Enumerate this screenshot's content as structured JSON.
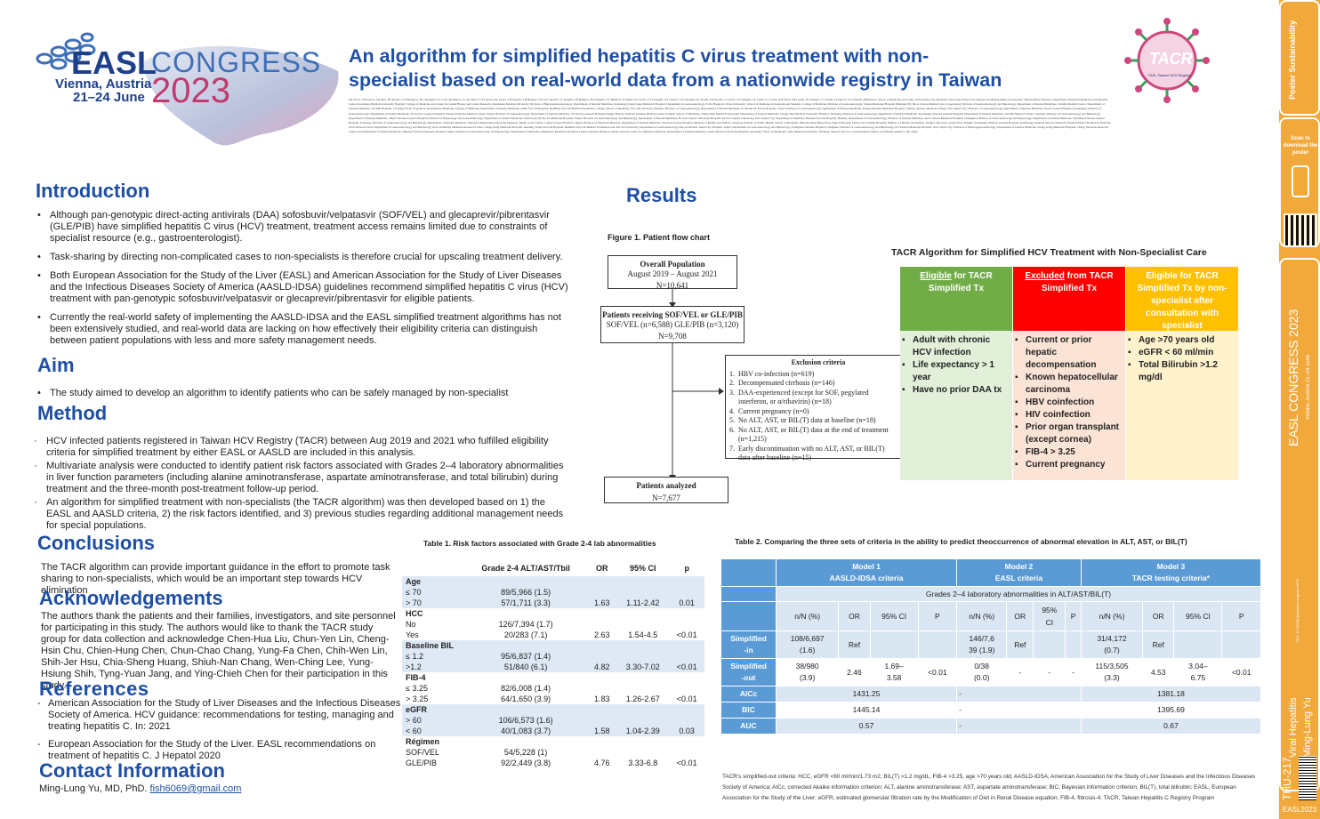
{
  "header": {
    "logo_easl": "EASL",
    "logo_congress": "CONGRESS",
    "logo_place": "Vienna, Austria",
    "logo_dates": "21–24 June",
    "logo_year": "2023",
    "title_line1": "An algorithm for simplified hepatitis C virus treatment with non-",
    "title_line2": "specialist based on real-world data from a nationwide registry in Taiwan",
    "authors_text": "ML Yu1,2, CM Tai3,4, LR Mo5, HT Kuo6,7, CF Huang1,2, KC Tseng8,9, CC Lo10, MJ Bair11,12, SK Yeh13, CY Chen14, PL Lee15, TH Yang16, YH Huang17,18, LW Chen19, CC Yang20, CH Hung21, PN Cheng22, TY Hsieh23, JT Hu24, WC Wu25, CY Cheng26, GY Chen27, GX Zhou28, WL Tsai29, CN Kao30, CL Lin31, CY Wang32, TY Lin33, CL Lin34, WW Su35, TH Lee36, TS Chang37, CJ Liu38, CY Dai1,2, CY Chen39, Affiliations: School of Medicine and Center of Excellence for Metabolic Associated Fatty Liver Disease, Kaohsiung Medical University; Hepatobiliary Division, Department of Internal Medicine and Hepatitis Center, Kaohsiung Medical University Hospital; College of Medicine and Center for Liquid Biopsy and Cohort Research, Kaohsiung Medical University; Division of Hepatogastroenterology, Department of Internal Medicine, Kaohsiung Chang Gung Memorial Hospital; Department of Gastroenterology, E-Da Hospital, I-Shou University; School of Medicine for International Students, College of Medicine; Division of Gastroenterology, Tainan Municipal Hospital (Managed By Show Chwan Medical Care Corporation); Division of Gastroenterology and Hepatology, Department of Internal Medicine, Chi Mei Medical Center; Department of Internal Medicine, Chi Mei Hospital, Liouying; Ph.D. Program in Translational Medicine, College of Medicine; Department of Internal Medicine, Dalin Tzu Chi Hospital, Buddhist Tzu Chi Medical Foundation, Chiayi; School of Medicine, Tzu Chi University, Hualien; Division of Gastroenterology, Department of Internal Medicine, St. Martin De Porres Hospital, Chiayi; Division of Gastroenterology, Department of Internal Medicine, Taitung Mackay Memorial Hospital, Taitung; Mackay Medical College, New Taipei City; Division of Gastroenterology, Department of Internal Medicine, Yuan's General Hospital, Kaohsiung; Division of Gastroenterology, Department of Internal Medicine, Tri-Service General Hospital, National Defense Medical Center, Taipei; Division of Gastroenterology, Department of Internal Medicine, Tri-Service General Hospital Penghu Branch, National Defense Medical Center, Penghu; School of Medicine, Chung Shan Medical University; Department of Internal Medicine, Chung Shan Medical University Hospital, Taichung; Division of Gastroenterology, Department of Internal Medicine, Kaohsiung Veterans General Hospital; Department of Internal Medicine, Chi Mei Medical Center, Liouying; Division of Gastroenterology and Hepatology, Department of Internal Medicine, Taipei Veterans General Hospital; Division of Hepatology and Gastroenterology, Department of Internal Medicine, Shin Kong Wu Ho-Su Memorial Hospital, Taipei; Division of Gastroenterology and Hepatology, Department of Internal Medicine, Fu Jen Catholic University Hospital, Fu Jen Catholic University, New Taipei City; Department of Medicine, Hualien Tzu Chi Hospital, Hualien; Department of Gastroenterology, Division of Internal Medicine, Show Chwan Memorial Hospital, Changhua; Division of Gastroenterology and Hepatology, Department of Internal Medicine, Taichung Veterans General Hospital, Taichung; Division of Gastroenterology and Hepatology, Department of Internal Medicine, National Cheng Kung University Hospital, Tainan; Liver Center, Cathay General Hospital, Taipei; Division of Infectious Diseases, Department of Internal Medicine, Taoyuan General Hospital, Ministry of Health and Welfare, Taoyuan; Institute of Public Health, School of Medicine, National Yang Ming Chiao Tung University, Taipei City; Penghu Hospital, Ministry of Health and Welfare, Penghu; Zhou Guo-zong Clinic, Penghu; Kaohsiung Veterans General Hospital, Kaohsiung; National Taiwan University Hospital Hsin-Chu Branch, Hsinchu; Liver Research Unit, Department of Gastroenterology and Hepatology and Community Medicine Research Center, Chang Gung Memorial Hospital, Keelung; Taipei Tzu Chi Hospital, Buddhist Tzu Chi Medical Foundation and Tzu Chi University; Department of Gastroenterology, Ren-Ai Branch, Taipei City Hospital, Taipei; Department of Gastroenterology and Hepatology, Changhua Christian Hospital, Changhua; Division of Gastroenterology and Hepatology, Far Eastern Memorial Hospital, New Taipei City; Division of Hepatogastroenterology, Department of Internal Medicine, Chang Gung Memorial Hospital, Chiayi; Hepatitis Research Center and Department of Internal Medicine, National Taiwan University Hospital, Taipei; Division of Gastroenterology and Hepatology, Department of Medicine, Ditmanson Medical Foundation Chiayi Christian Hospital, Chiayi, Taiwan; Center for Digestive Medicine, Department of Internal Medicine, China Medical University Hospital, Taichung; School of Medicine, China Medical University, Taichung, Taiwan; The two correspondence authors contributed equally to this study.",
    "tacr_logo": "TACR",
    "tacr_sub": "TASL Taiwan HCV Registry"
  },
  "sidebar": {
    "brand": "Poster Sustainability",
    "scan_text": "Scan to download the poster",
    "congress": "EASL CONGRESS 2023",
    "place": "Vienna, Austria 21–24 June",
    "doi": "DOI: 10.1016/j.jhep/easl-congress-2023",
    "topic": "Viral Hepatitis",
    "author": "Ming-Lung Yu",
    "poster_id": "THU-217",
    "footer": "EASL2023"
  },
  "intro": {
    "heading": "Introduction",
    "bullets": [
      "Although pan-genotypic direct-acting antivirals (DAA) sofosbuvir/velpatasvir (SOF/VEL) and glecaprevir/pibrentasvir (GLE/PIB) have simplified hepatitis C virus (HCV) treatment, treatment access remains limited due to constraints of specialist resource (e.g., gastroenterologist).",
      "Task-sharing by directing non-complicated cases to non-specialists is therefore crucial for upscaling treatment delivery.",
      "Both European Association for the Study of the Liver (EASL) and American Association for the Study of Liver Diseases and the Infectious Diseases Society of America (AASLD-IDSA) guidelines recommend simplified hepatitis C virus (HCV) treatment with pan-genotypic sofosbuvir/velpatasvir or glecaprevir/pibrentasvir for eligible patients.",
      "Currently the real-world safety of implementing the AASLD-IDSA and the EASL simplified treatment algorithms has not been extensively studied, and real-world data are lacking on how effectively their eligibility criteria can distinguish between patient populations with less and more safety management needs."
    ]
  },
  "aim": {
    "heading": "Aim",
    "bullet": "The study aimed to develop an algorithm to identify patients who can be safely managed by non-specialist"
  },
  "method": {
    "heading": "Method",
    "bullets": [
      "HCV infected patients registered in Taiwan HCV Registry (TACR) between Aug 2019 and 2021 who fulfilled eligibility criteria for simplified treatment by either EASL or AASLD are included in this analysis.",
      "Multivariate analysis were conducted to identify patient risk factors associated with Grades 2–4 laboratory abnormalities in liver function parameters (including alanine aminotransferase, aspartate aminotransferase, and total bilirubin) during treatment and the three-month post-treatment follow-up period.",
      "An algorithm for simplified treatment with non-specialists (the TACR algorithm) was then developed based on 1) the EASL and AASLD criteria, 2) the risk factors identified, and 3) previous studies regarding additional management needs for special populations."
    ]
  },
  "conclusions": {
    "heading": "Conclusions",
    "text": "The TACR algorithm can provide important guidance in the effort to promote task sharing to non-specialists, which would be an important step towards HCV elimination"
  },
  "ack": {
    "heading": "Acknowledgements",
    "text": "The authors thank the patients and their families, investigators, and site personnel for participating in this study. The authors would like to thank the TACR study group for data collection and acknowledge Chen-Hua Liu, Chun-Yen Lin, Cheng-Hsin Chu, Chien-Hung Chen, Chun-Chao Chang, Yung-Fa Chen, Chih-Wen Lin, Shih-Jer Hsu, Chia-Sheng Huang, Shiuh-Nan Chang, Wen-Ching Lee, Yung- Hsiung Shih, Tyng-Yuan Jang, and Ying-Chieh Chen for their participation in this study."
  },
  "refs": {
    "heading": "References",
    "items": [
      "American Association for the Study of Liver Diseases and the Infectious Diseases Society of America. HCV guidance: recommendations for testing, managing and treating hepatitis C. In: 2021",
      "European Association for the Study of the Liver. EASL recommendations on treatment of hepatitis C. J Hepatol 2020"
    ]
  },
  "contact": {
    "heading": "Contact Information",
    "name": "Ming-Lung Yu, MD, PhD.",
    "email": "fish6069@gmail.com"
  },
  "results": {
    "heading": "Results"
  },
  "flow": {
    "title": "Figure 1. Patient flow chart",
    "box1_title": "Overall Population",
    "box1_dates": "August 2019 – August 2021",
    "box1_n": "N=10,641",
    "box2_title": "Patients receiving SOF/VEL or GLE/PIB",
    "box2_sub": "SOF/VEL (n=6,588) GLE/PIB (n=3,120)",
    "box2_n": "N=9,708",
    "excl_title": "Exclusion criteria",
    "excl_items": [
      "1.  HBV co-infection (n=619)",
      "2.  Decompensated cirrhosis (n=146)",
      "3.  DAA-experienced (except for SOF, pegylated",
      "     interferon, or α/ribavirin) (n=18)",
      "4.  Current pregnancy (n=0)",
      "5.  No ALT, AST, or BIL(T) data at baseline (n=18)",
      "6.  No ALT, AST, or BIL(T) data at the end of treatment",
      "     (n=1,215)",
      "7.  Early discontinuation with no ALT, AST, or BIL(T)",
      "     data after baseline (n=15)"
    ],
    "box3_title": "Patients analyzed",
    "box3_n": "N=7,677"
  },
  "algo": {
    "title": "TACR Algorithm for Simplified HCV Treatment with Non-Specialist Care",
    "col1_head_u": "Eligible",
    "col1_head": " for TACR Simplified Tx",
    "col2_head_u": "Excluded",
    "col2_head": " from TACR Simplified Tx",
    "col3_head": "Eligible for TACR Simplified Tx by non-specialist after consultation with specialist",
    "col1_items": [
      "Adult with chronic HCV infection",
      "Life expectancy > 1 year",
      "Have no prior DAA tx"
    ],
    "col2_items": [
      "Current or prior hepatic decompensation",
      "Known hepatocellular carcinoma",
      "HBV coinfection",
      "HIV coinfection",
      "Prior organ transplant (except cornea)",
      "FIB-4 > 3.25",
      "Current pregnancy"
    ],
    "col3_items": [
      "Age >70 years old",
      "eGFR < 60 ml/min",
      "Total Bilirubin >1.2 mg/dl"
    ],
    "colors": {
      "green": "#70ad47",
      "red": "#ff0000",
      "yellow": "#ffc000",
      "green_bg": "#e2efd9",
      "red_bg": "#fbe4d5",
      "yellow_bg": "#fff2cc"
    }
  },
  "table1": {
    "title": "Table 1. Risk factors associated with Grade 2-4 lab abnormalities",
    "headers": [
      "",
      "Grade 2-4 ALT/AST/Tbil",
      "OR",
      "95% CI",
      "p"
    ],
    "groups": [
      {
        "name": "Age",
        "rows": [
          [
            "≤ 70",
            "89/5,966 (1.5)",
            "",
            "",
            ""
          ],
          [
            "> 70",
            "57/1,711 (3.3)",
            "1.63",
            "1.11-2.42",
            "0.01"
          ]
        ]
      },
      {
        "name": "HCC",
        "rows": [
          [
            "No",
            "126/7,394 (1.7)",
            "",
            "",
            ""
          ],
          [
            "Yes",
            "20/283 (7.1)",
            "2.63",
            "1.54-4.5",
            "<0.01"
          ]
        ]
      },
      {
        "name": "Baseline BIL",
        "rows": [
          [
            "≤ 1.2",
            "95/6,837 (1.4)",
            "",
            "",
            ""
          ],
          [
            ">1.2",
            "51/840 (6.1)",
            "4.82",
            "3.30-7.02",
            "<0.01"
          ]
        ]
      },
      {
        "name": "FIB-4",
        "rows": [
          [
            "≤ 3.25",
            "82/6,008 (1.4)",
            "",
            "",
            ""
          ],
          [
            "> 3.25",
            "64/1,650 (3.9)",
            "1.83",
            "1.26-2.67",
            "<0.01"
          ]
        ]
      },
      {
        "name": "eGFR",
        "rows": [
          [
            "> 60",
            "106/6,573 (1.6)",
            "",
            "",
            ""
          ],
          [
            "< 60",
            "40/1,083 (3.7)",
            "1.58",
            "1.04-2.39",
            "0.03"
          ]
        ]
      },
      {
        "name": "Régimen",
        "rows": [
          [
            "SOF/VEL",
            "54/5,228 (1)",
            "",
            "",
            ""
          ],
          [
            "GLE/PIB",
            "92/2,449 (3.8)",
            "4.76",
            "3.33-6.8",
            "<0.01"
          ]
        ]
      }
    ]
  },
  "table2": {
    "title": "Table 2. Comparing the three sets of criteria in the ability to predict theoccurrence of abnormal elevation in ALT, AST, or BIL(T)",
    "m1": "Model 1",
    "m1s": "AASLD-IDSA criteria",
    "m2": "Model 2",
    "m2s": "EASL criteria",
    "m3": "Model 3",
    "m3s": "TACR testing criteria*",
    "span": "Grades 2–4 laboratory abnormalities in ALT/AST/BIL(T)",
    "sub": [
      "n/N (%)",
      "OR",
      "95% CI",
      "P",
      "n/N (%)",
      "OR",
      "95% CI",
      "P",
      "n/N (%)",
      "OR",
      "95% CI",
      "P"
    ],
    "sub_ci2_a": "95%",
    "sub_ci2_b": "CI",
    "in_label_a": "Simplified",
    "in_label_b": "-in",
    "in_m1_a": "108/6,697",
    "in_m1_b": "(1.6)",
    "in_m2_a": "146/7,6",
    "in_m2_b": "39 (1.9)",
    "in_m3_a": "31/4,172",
    "in_m3_b": "(0.7)",
    "ref": "Ref",
    "out_label_a": "Simplified",
    "out_label_b": "-out",
    "out_m1_a": "38/980",
    "out_m1_b": "(3.9)",
    "out_m1_or": "2.46",
    "out_m1_ci_a": "1.69–",
    "out_m1_ci_b": "3.58",
    "out_m1_p": "<0.01",
    "out_m2_a": "0/38",
    "out_m2_b": "(0.0)",
    "dash": "-",
    "out_m3_a": "115/3,505",
    "out_m3_b": "(3.3)",
    "out_m3_or": "4.53",
    "out_m3_ci_a": "3.04–",
    "out_m3_ci_b": "6.75",
    "out_m3_p": "<0.01",
    "aic": "AICc",
    "aic1": "1431.25",
    "aic3": "1381.18",
    "bic": "BIC",
    "bic1": "1445.14",
    "bic3": "1395.69",
    "auc": "AUC",
    "auc1": "0.57",
    "auc3": "0.67",
    "footnote": "TACR's simplified-out criteria: HCC, eGFR <60 ml/min/1.73 m2, BIL(T) >1.2 mg/dL, FIB-4 >3.25, age >70 years old; AASLD-IDSA, American Association for the Study of Liver Diseases and the Infectious Diseases Society of America; AICc, corrected Akaike information criterion; ALT, alanine aminotransferase; AST, aspartate aminotransferase; BIC, Bayesian information criterion; BIL(T), total bilirubin; EASL, European Association for the Study of the Liver; eGFR, estimated glomerular filtration rate by the Modification of Diet in Renal Disease equation; FIB-4, fibrosis-4; TACR, Taiwan Hepatitis C Registry Program"
  }
}
